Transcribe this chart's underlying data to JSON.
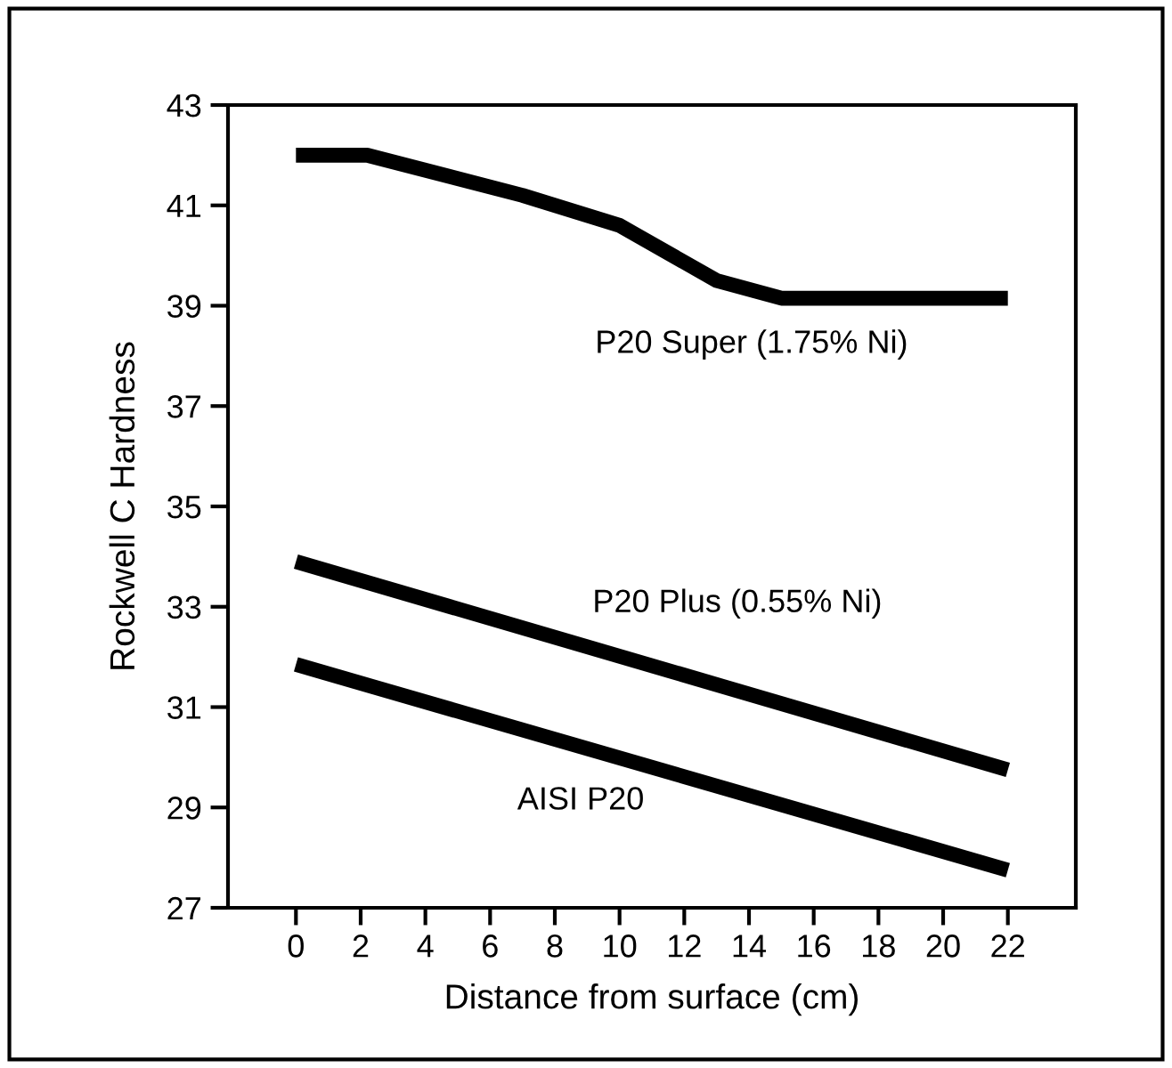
{
  "chart_data": {
    "type": "line",
    "xlabel": "Distance from surface (cm)",
    "ylabel": "Rockwell C Hardness",
    "xlim": [
      -2.1,
      24.1
    ],
    "xticks": [
      0,
      2,
      4,
      6,
      8,
      10,
      12,
      14,
      16,
      18,
      20,
      22
    ],
    "ylim": [
      27,
      43
    ],
    "yticks": [
      27,
      29,
      31,
      33,
      35,
      37,
      39,
      41,
      43
    ],
    "grid": false,
    "legend": false,
    "marker": "none",
    "line_style": "solid",
    "series": [
      {
        "name": "P20 Super (1.75% Ni)",
        "color": "#000000",
        "x": [
          0,
          2.2,
          7,
          10,
          13,
          15,
          22
        ],
        "values": [
          42.0,
          42.0,
          41.2,
          40.6,
          39.5,
          39.15,
          39.15
        ]
      },
      {
        "name": "P20 Plus (0.55% Ni)",
        "color": "#000000",
        "x": [
          0,
          22
        ],
        "values": [
          33.9,
          29.75
        ]
      },
      {
        "name": "AISI P20",
        "color": "#000000",
        "x": [
          0,
          22
        ],
        "values": [
          31.85,
          27.75
        ]
      }
    ]
  }
}
